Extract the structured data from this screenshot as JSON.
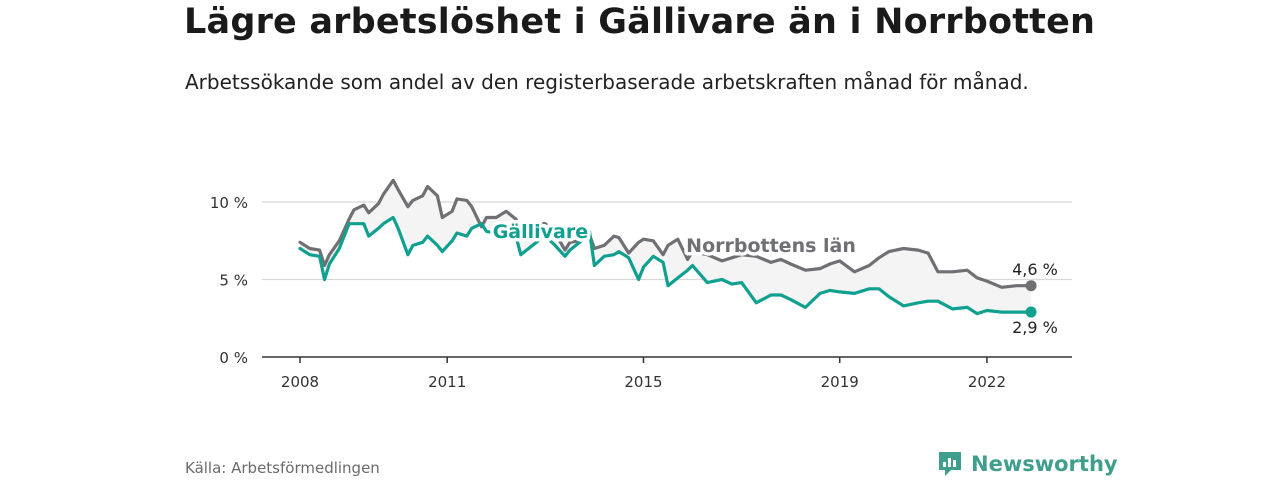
{
  "title": "Lägre arbetslöshet i Gällivare än i Norrbotten",
  "subtitle": "Arbetssökande som andel av den registerbaserade arbetskraften månad för månad.",
  "source": "Källa: Arbetsförmedlingen",
  "brand": {
    "name": "Newsworthy",
    "logo_icon": "newsworthy-logo-icon"
  },
  "colors": {
    "gallivare": "#10a090",
    "norrbotten": "#6f6f74",
    "band": "#f4f4f4",
    "grid": "#d8d8d8"
  },
  "chart_data": {
    "type": "line",
    "title": "Lägre arbetslöshet i Gällivare än i Norrbotten",
    "xlabel": "",
    "ylabel": "",
    "xlim": [
      2008,
      2023.3
    ],
    "ylim": [
      0,
      10
    ],
    "y_ticks": [
      0,
      5,
      10
    ],
    "y_tick_labels": [
      "0 %",
      "5 %",
      "10 %"
    ],
    "x_ticks": [
      2008,
      2011,
      2015,
      2019,
      2022
    ],
    "x_tick_labels": [
      "2008",
      "2011",
      "2015",
      "2019",
      "2022"
    ],
    "grid": true,
    "series": [
      {
        "name": "Norrbottens län",
        "label": "Norrbottens län",
        "end_label": "4,6 %",
        "x": [
          2008.0,
          2008.2,
          2008.4,
          2008.5,
          2008.6,
          2008.8,
          2009.0,
          2009.1,
          2009.3,
          2009.4,
          2009.6,
          2009.7,
          2009.9,
          2010.0,
          2010.2,
          2010.3,
          2010.5,
          2010.6,
          2010.8,
          2010.9,
          2011.1,
          2011.2,
          2011.4,
          2011.5,
          2011.7,
          2011.8,
          2012.0,
          2012.2,
          2012.4,
          2012.5,
          2012.7,
          2012.9,
          2013.0,
          2013.2,
          2013.4,
          2013.5,
          2013.7,
          2013.9,
          2014.0,
          2014.2,
          2014.4,
          2014.5,
          2014.7,
          2014.9,
          2015.0,
          2015.2,
          2015.4,
          2015.5,
          2015.7,
          2015.9,
          2016.0,
          2016.3,
          2016.6,
          2016.8,
          2017.0,
          2017.3,
          2017.6,
          2017.8,
          2018.0,
          2018.3,
          2018.6,
          2018.8,
          2019.0,
          2019.3,
          2019.6,
          2019.8,
          2020.0,
          2020.3,
          2020.6,
          2020.8,
          2021.0,
          2021.3,
          2021.6,
          2021.8,
          2022.0,
          2022.3,
          2022.6,
          2022.9
        ],
        "values": [
          7.4,
          7.0,
          6.9,
          5.9,
          6.6,
          7.5,
          8.9,
          9.5,
          9.8,
          9.3,
          9.9,
          10.5,
          11.4,
          10.8,
          9.7,
          10.1,
          10.4,
          11.0,
          10.4,
          9.0,
          9.4,
          10.2,
          10.1,
          9.7,
          8.4,
          9.0,
          9.0,
          9.4,
          8.9,
          8.1,
          7.7,
          8.6,
          8.6,
          8.0,
          6.9,
          7.4,
          7.5,
          7.9,
          7.0,
          7.2,
          7.8,
          7.7,
          6.7,
          7.4,
          7.6,
          7.5,
          6.6,
          7.2,
          7.6,
          6.3,
          6.8,
          6.6,
          6.2,
          6.4,
          6.6,
          6.5,
          6.1,
          6.3,
          6.0,
          5.6,
          5.7,
          6.0,
          6.2,
          5.5,
          5.9,
          6.4,
          6.8,
          7.0,
          6.9,
          6.7,
          5.5,
          5.5,
          5.6,
          5.1,
          4.9,
          4.5,
          4.6,
          4.6
        ]
      },
      {
        "name": "Gällivare",
        "label": "Gällivare",
        "end_label": "2,9 %",
        "x": [
          2008.0,
          2008.2,
          2008.4,
          2008.5,
          2008.6,
          2008.8,
          2009.0,
          2009.1,
          2009.3,
          2009.4,
          2009.6,
          2009.7,
          2009.9,
          2010.0,
          2010.2,
          2010.3,
          2010.5,
          2010.6,
          2010.8,
          2010.9,
          2011.1,
          2011.2,
          2011.4,
          2011.5,
          2011.7,
          2011.8,
          2012.0,
          2012.2,
          2012.4,
          2012.5,
          2012.7,
          2012.9,
          2013.0,
          2013.2,
          2013.4,
          2013.5,
          2013.7,
          2013.9,
          2014.0,
          2014.2,
          2014.4,
          2014.5,
          2014.7,
          2014.9,
          2015.0,
          2015.2,
          2015.4,
          2015.5,
          2015.7,
          2015.9,
          2016.0,
          2016.3,
          2016.6,
          2016.8,
          2017.0,
          2017.3,
          2017.6,
          2017.8,
          2018.0,
          2018.3,
          2018.6,
          2018.8,
          2019.0,
          2019.3,
          2019.6,
          2019.8,
          2020.0,
          2020.3,
          2020.6,
          2020.8,
          2021.0,
          2021.3,
          2021.6,
          2021.8,
          2022.0,
          2022.3,
          2022.6,
          2022.9
        ],
        "values": [
          7.0,
          6.6,
          6.5,
          5.0,
          6.0,
          7.0,
          8.6,
          8.6,
          8.6,
          7.8,
          8.3,
          8.6,
          9.0,
          8.3,
          6.6,
          7.2,
          7.4,
          7.8,
          7.2,
          6.8,
          7.5,
          8.0,
          7.8,
          8.3,
          8.6,
          8.1,
          8.0,
          8.4,
          7.8,
          6.6,
          7.1,
          7.6,
          7.8,
          7.2,
          6.5,
          6.9,
          7.4,
          8.1,
          5.9,
          6.5,
          6.6,
          6.8,
          6.4,
          5.0,
          5.8,
          6.5,
          6.1,
          4.6,
          5.1,
          5.6,
          5.9,
          4.8,
          5.0,
          4.7,
          4.8,
          3.5,
          4.0,
          4.0,
          3.7,
          3.2,
          4.1,
          4.3,
          4.2,
          4.1,
          4.4,
          4.4,
          3.9,
          3.3,
          3.5,
          3.6,
          3.6,
          3.1,
          3.2,
          2.8,
          3.0,
          2.9,
          2.9,
          2.9
        ]
      }
    ]
  }
}
